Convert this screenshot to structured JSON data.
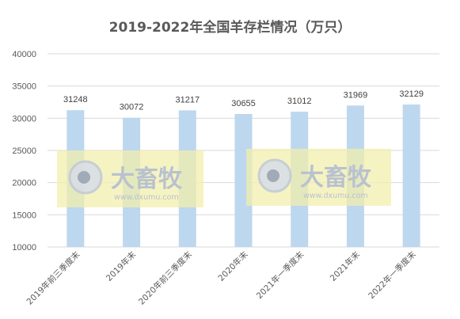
{
  "chart_data": {
    "type": "bar",
    "title": "2019-2022年全国羊存栏情况（万只）",
    "categories": [
      "2019年前三季度末",
      "2019年末",
      "2020年前三季度末",
      "2020年末",
      "2021年一季度末",
      "2021年末",
      "2022年一季度末"
    ],
    "values": [
      31248,
      30072,
      31217,
      30655,
      31012,
      31969,
      32129
    ],
    "ylim": [
      10000,
      40000
    ],
    "yticks": [
      10000,
      15000,
      20000,
      25000,
      30000,
      35000,
      40000
    ],
    "grid": true,
    "legend": "none",
    "colors": {
      "bar": "#bdd7ee",
      "grid": "#d9d9d9",
      "text": "#595959"
    }
  },
  "watermark": {
    "brand": "大畜牧",
    "url": "www.dxumu.com",
    "colors": {
      "box": "#f3eeaa",
      "text": "#b8c2cf"
    }
  }
}
